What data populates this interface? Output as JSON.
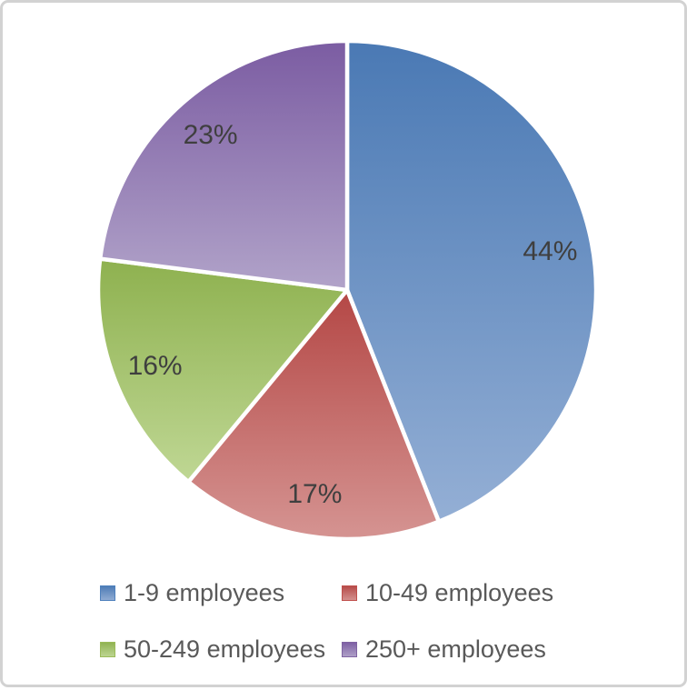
{
  "chart_data": {
    "type": "pie",
    "title": "",
    "start_angle_deg": 0,
    "direction": "clockwise",
    "label_radius_fraction": 0.83,
    "label_color": "#3f3f3f",
    "slice_border_color": "#ffffff",
    "categories": [
      "1-9 employees",
      "10-49 employees",
      "50-249 employees",
      "250+ employees"
    ],
    "values": [
      44,
      17,
      16,
      23
    ],
    "slices": [
      {
        "category": "1-9 employees",
        "value_pct": 44,
        "data_label": "44%",
        "color": "#4f81bd",
        "gradient_top": "#4a79b4",
        "gradient_bottom": "#94afd5"
      },
      {
        "category": "10-49 employees",
        "value_pct": 17,
        "data_label": "17%",
        "color": "#c0504d",
        "gradient_top": "#b44745",
        "gradient_bottom": "#d59492"
      },
      {
        "category": "50-249 employees",
        "value_pct": 16,
        "data_label": "16%",
        "color": "#9bbb59",
        "gradient_top": "#8eb14f",
        "gradient_bottom": "#bfd794"
      },
      {
        "category": "250+ employees",
        "value_pct": 23,
        "data_label": "23%",
        "color": "#8064a2",
        "gradient_top": "#7b5ca2",
        "gradient_bottom": "#b1a3c9"
      }
    ],
    "legend": {
      "position": "bottom",
      "rows": 2,
      "columns": 2,
      "text_color": "#595959",
      "order": [
        "1-9 employees",
        "10-49 employees",
        "50-249 employees",
        "250+ employees"
      ]
    }
  },
  "frame": {
    "border_color": "#d2d2d2",
    "background": "#ffffff"
  }
}
